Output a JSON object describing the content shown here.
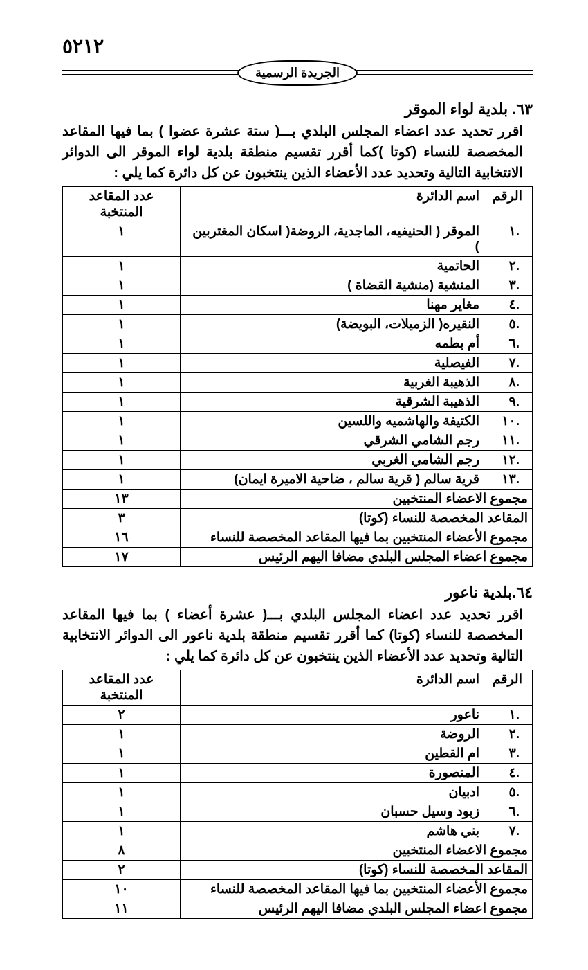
{
  "page_number": "٥٢١٢",
  "gazette_label": "الجريدة الرسمية",
  "section1": {
    "title": "٦٣. بلدية لواء الموقر",
    "intro": "اقرر تحديد عدد اعضاء المجلس البلدي بـــ( ستة عشرة عضوا ) بما فيها المقاعد المخصصة للنساء (كوتا )كما أقرر تقسيم منطقة بلدية لواء الموقر الى الدوائر الانتخابية التالية وتحديد عدد الأعضاء الذين ينتخبون عن كل دائرة كما يلي :",
    "headers": {
      "num": "الرقم",
      "district": "اسم الدائرة",
      "seats": "عدد المقاعد المنتخبة"
    },
    "rows": [
      {
        "n": ".١",
        "d": "الموقر ( الحنيفيه، الماجدية، الروضة( اسكان المغتربين )",
        "s": "١"
      },
      {
        "n": ".٢",
        "d": "الحاتمية",
        "s": "١"
      },
      {
        "n": ".٣",
        "d": "المنشية (منشية القضاة )",
        "s": "١"
      },
      {
        "n": ".٤",
        "d": "مغاير مهنا",
        "s": "١"
      },
      {
        "n": ".٥",
        "d": "النقيره( الزميلات، البويضة)",
        "s": "١"
      },
      {
        "n": ".٦",
        "d": "أم بطمه",
        "s": "١"
      },
      {
        "n": ".٧",
        "d": "الفيصلية",
        "s": "١"
      },
      {
        "n": ".٨",
        "d": "الذهيبة الغربية",
        "s": "١"
      },
      {
        "n": ".٩",
        "d": "الذهيبة الشرقية",
        "s": "١"
      },
      {
        "n": ".١٠",
        "d": "الكتيفة والهاشميه واللسين",
        "s": "١"
      },
      {
        "n": ".١١",
        "d": "رجم الشامي الشرقي",
        "s": "١"
      },
      {
        "n": ".١٢",
        "d": "رجم الشامي الغربي",
        "s": "١"
      },
      {
        "n": ".١٣",
        "d": "قرية سالم ( قرية سالم ، ضاحية الاميرة ايمان)",
        "s": "١"
      }
    ],
    "summary": [
      {
        "label": "مجموع الاعضاء المنتخبين",
        "val": "١٣"
      },
      {
        "label": "المقاعد المخصصة للنساء (كوتا)",
        "val": "٣"
      },
      {
        "label": "مجموع الأعضاء المنتخبين بما فيها المقاعد المخصصة للنساء",
        "val": "١٦"
      },
      {
        "label": "مجموع اعضاء المجلس البلدي مضافا اليهم الرئيس",
        "val": "١٧"
      }
    ]
  },
  "section2": {
    "title": "٦٤.بلدية ناعور",
    "intro": "اقرر تحديد عدد اعضاء المجلس البلدي بـــ(  عشرة أعضاء ) بما فيها المقاعد المخصصة للنساء (كوتا) كما أقرر تقسيم منطقة بلدية ناعور الى الدوائر الانتخابية التالية وتحديد عدد الأعضاء الذين ينتخبون عن كل دائرة كما يلي :",
    "headers": {
      "num": "الرقم",
      "district": "اسم الدائرة",
      "seats": "عدد المقاعد المنتخبة"
    },
    "rows": [
      {
        "n": ".١",
        "d": "ناعور",
        "s": "٢"
      },
      {
        "n": ".٢",
        "d": "الروضة",
        "s": "١"
      },
      {
        "n": ".٣",
        "d": "ام القطين",
        "s": "١"
      },
      {
        "n": ".٤",
        "d": "المنصورة",
        "s": "١"
      },
      {
        "n": ".٥",
        "d": "ادبيان",
        "s": "١"
      },
      {
        "n": ".٦",
        "d": "زبود وسيل حسبان",
        "s": "١"
      },
      {
        "n": ".٧",
        "d": "بني هاشم",
        "s": "١"
      }
    ],
    "summary": [
      {
        "label": "مجموع الاعضاء المنتخبين",
        "val": "٨"
      },
      {
        "label": "المقاعد المخصصة للنساء (كوتا)",
        "val": "٢"
      },
      {
        "label": "مجموع الأعضاء المنتخبين بما فيها المقاعد المخصصة للنساء",
        "val": "١٠"
      },
      {
        "label": "مجموع اعضاء المجلس البلدي مضافا اليهم الرئيس",
        "val": "١١"
      }
    ]
  }
}
